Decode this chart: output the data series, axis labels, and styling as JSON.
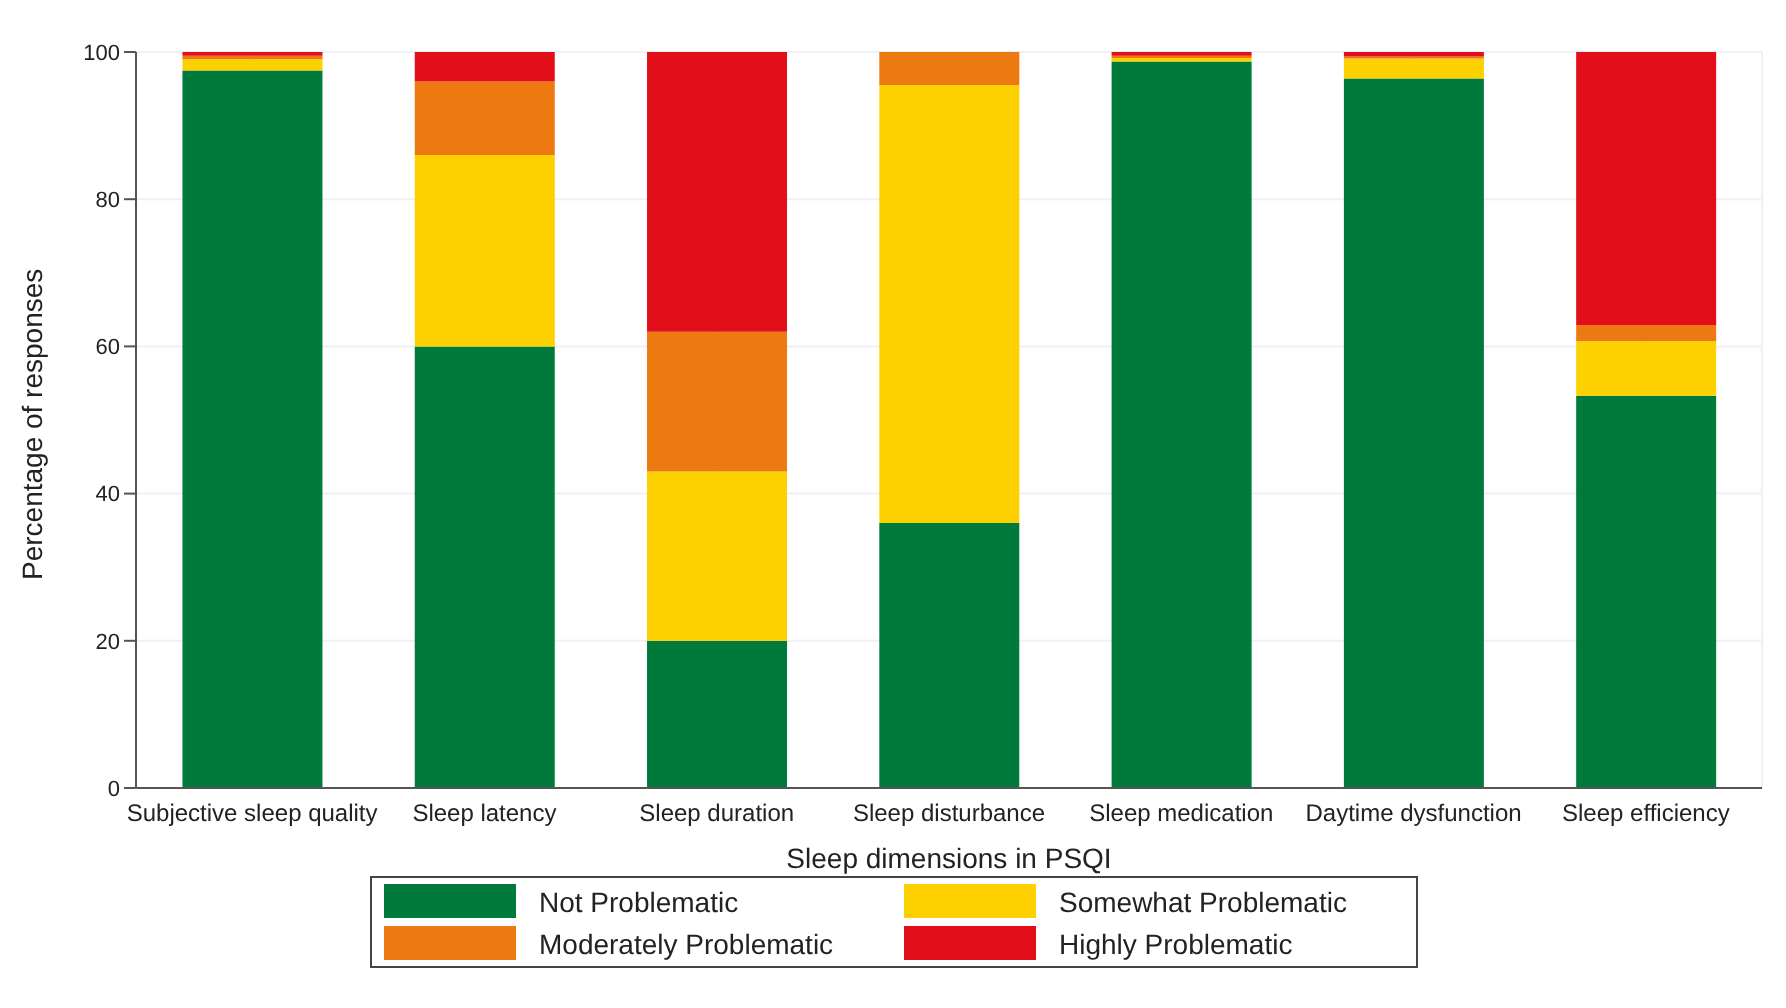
{
  "chart_data": {
    "type": "bar",
    "stacked": true,
    "xlabel": "Sleep dimensions in PSQI",
    "ylabel": "Percentage of responses",
    "categories": [
      "Subjective sleep quality",
      "Sleep latency",
      "Sleep duration",
      "Sleep disturbance",
      "Sleep medication",
      "Daytime dysfunction",
      "Sleep efficiency"
    ],
    "series": [
      {
        "name": "Not Problematic",
        "color": "#007a3a",
        "values": [
          97.5,
          60,
          20,
          36,
          98.7,
          96.4,
          53.3
        ]
      },
      {
        "name": "Somewhat Problematic",
        "color": "#fdd000",
        "values": [
          1.5,
          26,
          23,
          59.5,
          0.5,
          2.7,
          7.4
        ]
      },
      {
        "name": "Moderately Problematic",
        "color": "#ec7a10",
        "values": [
          0.5,
          10,
          19,
          4.5,
          0.3,
          0.3,
          2.2
        ]
      },
      {
        "name": "Highly Problematic",
        "color": "#e20e19",
        "values": [
          0.5,
          4,
          38,
          0,
          0.5,
          0.6,
          37.1
        ]
      }
    ],
    "ylim": [
      0,
      100
    ],
    "yticks": [
      0,
      20,
      40,
      60,
      80,
      100
    ],
    "grid": true,
    "legend": "bottom"
  }
}
